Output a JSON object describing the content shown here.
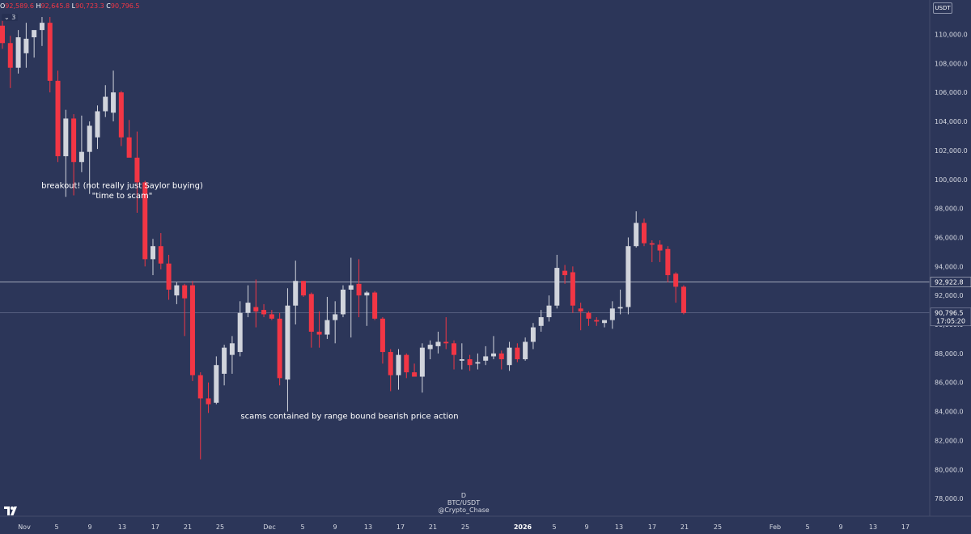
{
  "legend": {
    "o_label": "O",
    "o_value": "92,589.6",
    "h_label": "H",
    "h_value": "92,645.8",
    "l_label": "L",
    "l_value": "90,723.3",
    "c_label": "C",
    "c_value": "90,796.5",
    "indicator_toggle": "⌄ 3"
  },
  "currency_button": "USDT",
  "watermark": {
    "interval": "D",
    "symbol": "BTC/USDT",
    "author": "@Crypto_Chase"
  },
  "colors": {
    "background": "#2c3659",
    "up": "#d1d4dc",
    "down": "#f23645",
    "text": "#d6d9e2"
  },
  "chart_data": {
    "type": "candlestick",
    "y_axis": {
      "min": 77000,
      "max": 112000,
      "ticks": [
        78000,
        80000,
        82000,
        84000,
        86000,
        88000,
        90000,
        92000,
        94000,
        96000,
        98000,
        100000,
        102000,
        104000,
        106000,
        108000,
        110000
      ],
      "position": "right"
    },
    "x_axis": {
      "labels": [
        "Nov",
        "5",
        "9",
        "13",
        "17",
        "21",
        "25",
        "Dec",
        "5",
        "9",
        "13",
        "17",
        "21",
        "25",
        "2026",
        "5",
        "9",
        "13",
        "17",
        "21",
        "25",
        "Feb",
        "5",
        "9",
        "13",
        "17"
      ],
      "bold_labels": [
        "2026"
      ]
    },
    "horizontal_line": {
      "value": 92922.8,
      "label": "92,922.8"
    },
    "last_price": {
      "value": 90796.5,
      "label": "90,796.5",
      "countdown": "17:05:20"
    },
    "candles": [
      {
        "o": 110600,
        "h": 111200,
        "l": 109000,
        "c": 109400
      },
      {
        "o": 109400,
        "h": 109900,
        "l": 106300,
        "c": 107700
      },
      {
        "o": 107700,
        "h": 110300,
        "l": 107300,
        "c": 109800
      },
      {
        "o": 108700,
        "h": 110800,
        "l": 107700,
        "c": 109700
      },
      {
        "o": 109800,
        "h": 110200,
        "l": 108400,
        "c": 110300
      },
      {
        "o": 110300,
        "h": 111200,
        "l": 109200,
        "c": 110800
      },
      {
        "o": 110800,
        "h": 111200,
        "l": 106000,
        "c": 106800
      },
      {
        "o": 106800,
        "h": 107500,
        "l": 101200,
        "c": 101600
      },
      {
        "o": 101600,
        "h": 104800,
        "l": 98800,
        "c": 104200
      },
      {
        "o": 104200,
        "h": 104500,
        "l": 98900,
        "c": 101200
      },
      {
        "o": 101200,
        "h": 104400,
        "l": 100500,
        "c": 101900
      },
      {
        "o": 101900,
        "h": 104000,
        "l": 99000,
        "c": 103700
      },
      {
        "o": 102900,
        "h": 105100,
        "l": 102100,
        "c": 104700
      },
      {
        "o": 104700,
        "h": 106500,
        "l": 104300,
        "c": 105700
      },
      {
        "o": 104600,
        "h": 107500,
        "l": 104000,
        "c": 106000
      },
      {
        "o": 106000,
        "h": 106100,
        "l": 102300,
        "c": 102900
      },
      {
        "o": 102900,
        "h": 104100,
        "l": 101700,
        "c": 101500
      },
      {
        "o": 101500,
        "h": 103300,
        "l": 97700,
        "c": 99800
      },
      {
        "o": 99800,
        "h": 99900,
        "l": 94000,
        "c": 94500
      },
      {
        "o": 94500,
        "h": 95900,
        "l": 93400,
        "c": 95400
      },
      {
        "o": 95400,
        "h": 96300,
        "l": 93800,
        "c": 94200
      },
      {
        "o": 94200,
        "h": 94800,
        "l": 91700,
        "c": 92400
      },
      {
        "o": 92000,
        "h": 92900,
        "l": 91400,
        "c": 92700
      },
      {
        "o": 92700,
        "h": 92800,
        "l": 89200,
        "c": 91800
      },
      {
        "o": 92700,
        "h": 93000,
        "l": 86100,
        "c": 86500
      },
      {
        "o": 86500,
        "h": 86700,
        "l": 80700,
        "c": 84900
      },
      {
        "o": 84900,
        "h": 86000,
        "l": 83900,
        "c": 84500
      },
      {
        "o": 84600,
        "h": 87800,
        "l": 84500,
        "c": 87200
      },
      {
        "o": 86600,
        "h": 88600,
        "l": 85800,
        "c": 88400
      },
      {
        "o": 87900,
        "h": 89200,
        "l": 86600,
        "c": 88700
      },
      {
        "o": 88100,
        "h": 91600,
        "l": 87800,
        "c": 90800
      },
      {
        "o": 90800,
        "h": 92700,
        "l": 90500,
        "c": 91500
      },
      {
        "o": 91200,
        "h": 93100,
        "l": 89800,
        "c": 90900
      },
      {
        "o": 91000,
        "h": 91400,
        "l": 90500,
        "c": 90700
      },
      {
        "o": 90700,
        "h": 91000,
        "l": 90300,
        "c": 90400
      },
      {
        "o": 90400,
        "h": 90800,
        "l": 85800,
        "c": 86300
      },
      {
        "o": 86200,
        "h": 92500,
        "l": 84000,
        "c": 91300
      },
      {
        "o": 91300,
        "h": 94400,
        "l": 90000,
        "c": 93000
      },
      {
        "o": 93000,
        "h": 93000,
        "l": 91900,
        "c": 92000
      },
      {
        "o": 92100,
        "h": 92200,
        "l": 88400,
        "c": 89500
      },
      {
        "o": 89500,
        "h": 90900,
        "l": 88400,
        "c": 89300
      },
      {
        "o": 89300,
        "h": 91900,
        "l": 89000,
        "c": 90300
      },
      {
        "o": 90300,
        "h": 91600,
        "l": 88700,
        "c": 90700
      },
      {
        "o": 90700,
        "h": 92700,
        "l": 90500,
        "c": 92400
      },
      {
        "o": 92400,
        "h": 94600,
        "l": 89100,
        "c": 92700
      },
      {
        "o": 92800,
        "h": 94500,
        "l": 90500,
        "c": 92000
      },
      {
        "o": 92000,
        "h": 92300,
        "l": 89900,
        "c": 92200
      },
      {
        "o": 92200,
        "h": 92300,
        "l": 90300,
        "c": 90400
      },
      {
        "o": 90400,
        "h": 90500,
        "l": 87300,
        "c": 88100
      },
      {
        "o": 88100,
        "h": 88300,
        "l": 85400,
        "c": 86500
      },
      {
        "o": 86500,
        "h": 88300,
        "l": 85500,
        "c": 87900
      },
      {
        "o": 87900,
        "h": 88000,
        "l": 86300,
        "c": 86700
      },
      {
        "o": 86700,
        "h": 87300,
        "l": 86600,
        "c": 86400
      },
      {
        "o": 86400,
        "h": 88700,
        "l": 85300,
        "c": 88400
      },
      {
        "o": 88300,
        "h": 88900,
        "l": 87600,
        "c": 88600
      },
      {
        "o": 88500,
        "h": 89500,
        "l": 88000,
        "c": 88800
      },
      {
        "o": 88800,
        "h": 90500,
        "l": 88300,
        "c": 88700
      },
      {
        "o": 88700,
        "h": 88900,
        "l": 86900,
        "c": 87900
      },
      {
        "o": 87500,
        "h": 88700,
        "l": 86900,
        "c": 87600
      },
      {
        "o": 87600,
        "h": 87900,
        "l": 86800,
        "c": 87200
      },
      {
        "o": 87300,
        "h": 88000,
        "l": 86900,
        "c": 87400
      },
      {
        "o": 87500,
        "h": 88500,
        "l": 87200,
        "c": 87800
      },
      {
        "o": 87800,
        "h": 89200,
        "l": 87600,
        "c": 88000
      },
      {
        "o": 88000,
        "h": 88200,
        "l": 86900,
        "c": 87600
      },
      {
        "o": 87200,
        "h": 88800,
        "l": 86800,
        "c": 88400
      },
      {
        "o": 88400,
        "h": 88700,
        "l": 87400,
        "c": 87600
      },
      {
        "o": 87600,
        "h": 89100,
        "l": 87500,
        "c": 88800
      },
      {
        "o": 88800,
        "h": 90100,
        "l": 88300,
        "c": 89800
      },
      {
        "o": 89900,
        "h": 91000,
        "l": 89500,
        "c": 90500
      },
      {
        "o": 90500,
        "h": 92000,
        "l": 90200,
        "c": 91300
      },
      {
        "o": 91300,
        "h": 94800,
        "l": 91100,
        "c": 93900
      },
      {
        "o": 93700,
        "h": 94100,
        "l": 92800,
        "c": 93400
      },
      {
        "o": 93600,
        "h": 94000,
        "l": 90800,
        "c": 91300
      },
      {
        "o": 91100,
        "h": 91500,
        "l": 89600,
        "c": 90900
      },
      {
        "o": 90800,
        "h": 90900,
        "l": 89900,
        "c": 90400
      },
      {
        "o": 90300,
        "h": 90500,
        "l": 89900,
        "c": 90200
      },
      {
        "o": 90100,
        "h": 90300,
        "l": 89800,
        "c": 90300
      },
      {
        "o": 90300,
        "h": 91600,
        "l": 89700,
        "c": 91100
      },
      {
        "o": 91100,
        "h": 92400,
        "l": 90700,
        "c": 91200
      },
      {
        "o": 91200,
        "h": 96000,
        "l": 90700,
        "c": 95400
      },
      {
        "o": 95400,
        "h": 97800,
        "l": 95300,
        "c": 97000
      },
      {
        "o": 97000,
        "h": 97300,
        "l": 95400,
        "c": 95600
      },
      {
        "o": 95600,
        "h": 95800,
        "l": 94300,
        "c": 95500
      },
      {
        "o": 95500,
        "h": 95800,
        "l": 94300,
        "c": 95100
      },
      {
        "o": 95200,
        "h": 95400,
        "l": 92900,
        "c": 93400
      },
      {
        "o": 93500,
        "h": 93600,
        "l": 91500,
        "c": 92600
      },
      {
        "o": 92600,
        "h": 92700,
        "l": 90700,
        "c": 90800
      }
    ],
    "annotations": [
      {
        "text": "breakout! (not really just Saylor buying)",
        "x_label": "13",
        "y": 99400
      },
      {
        "text": "\"time to scam\"",
        "x_label": "13",
        "y": 98700
      },
      {
        "text": "scams contained by range bound bearish price action",
        "x_label": "Dec",
        "y": 83500
      }
    ]
  }
}
